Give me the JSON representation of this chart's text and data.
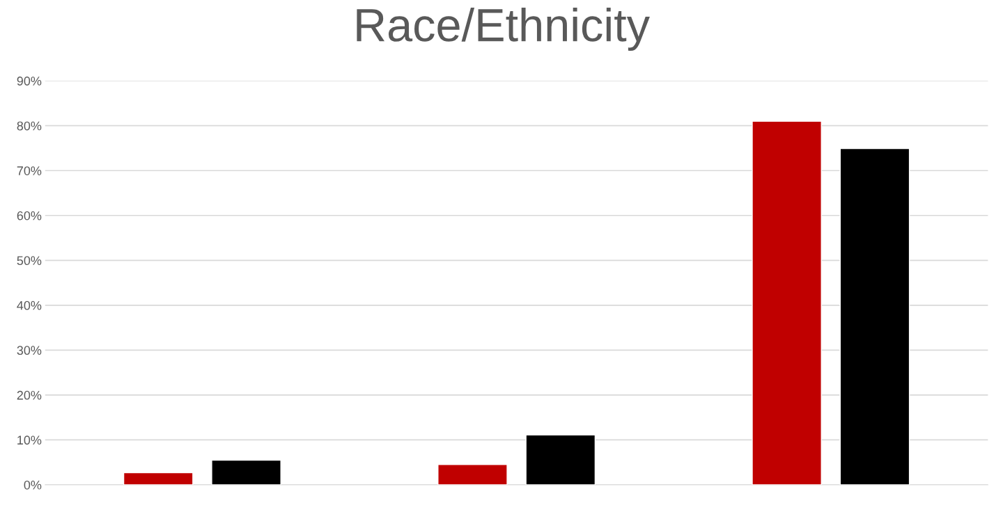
{
  "chart_data": {
    "type": "bar",
    "title": "Race/Ethnicity",
    "categories": [
      null,
      null,
      null
    ],
    "series": [
      {
        "color": "#c00000",
        "values": [
          2.7,
          4.5,
          81.0
        ]
      },
      {
        "color": "#000000",
        "values": [
          5.5,
          11.1,
          74.9
        ]
      }
    ],
    "ylim": [
      0,
      90
    ],
    "yticks": [
      {
        "value": 0,
        "label": "0%"
      },
      {
        "value": 10,
        "label": "10%"
      },
      {
        "value": 20,
        "label": "20%"
      },
      {
        "value": 30,
        "label": "30%"
      },
      {
        "value": 40,
        "label": "40%"
      },
      {
        "value": 50,
        "label": "50%"
      },
      {
        "value": 60,
        "label": "60%"
      },
      {
        "value": 70,
        "label": "70%"
      },
      {
        "value": 80,
        "label": "80%"
      },
      {
        "value": 90,
        "label": "90%"
      }
    ],
    "grid": "y",
    "legend": false
  }
}
